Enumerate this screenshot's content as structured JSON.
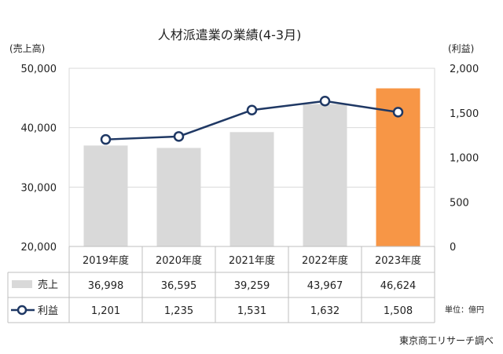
{
  "chart_data": {
    "type": "bar+line",
    "title": "人材派遣業の業績(4-3月)",
    "categories": [
      "2019年度",
      "2020年度",
      "2021年度",
      "2022年度",
      "2023年度"
    ],
    "left_axis": {
      "label": "(売上高)",
      "range": [
        20000,
        50000
      ],
      "ticks": [
        "20,000",
        "30,000",
        "40,000",
        "50,000"
      ],
      "tick_values": [
        20000,
        30000,
        40000,
        50000
      ]
    },
    "right_axis": {
      "label": "(利益)",
      "range": [
        0,
        2000
      ],
      "ticks": [
        "0",
        "500",
        "1,000",
        "1,500",
        "2,000"
      ],
      "tick_values": [
        0,
        500,
        1000,
        1500,
        2000
      ]
    },
    "series": [
      {
        "name": "売上",
        "kind": "bar",
        "axis": "left",
        "values": [
          36998,
          36595,
          39259,
          43967,
          46624
        ],
        "labels": [
          "36,998",
          "36,595",
          "39,259",
          "43,967",
          "46,624"
        ],
        "color": "#d9d9d9",
        "highlight_color": "#f79646",
        "highlight_index": 4
      },
      {
        "name": "利益",
        "kind": "line",
        "axis": "right",
        "values": [
          1201,
          1235,
          1531,
          1632,
          1508
        ],
        "labels": [
          "1,201",
          "1,235",
          "1,531",
          "1,632",
          "1,508"
        ],
        "color": "#1f3864"
      }
    ],
    "grid": true,
    "unit_note": "単位：億円",
    "source": "東京商工リサーチ調べ"
  }
}
